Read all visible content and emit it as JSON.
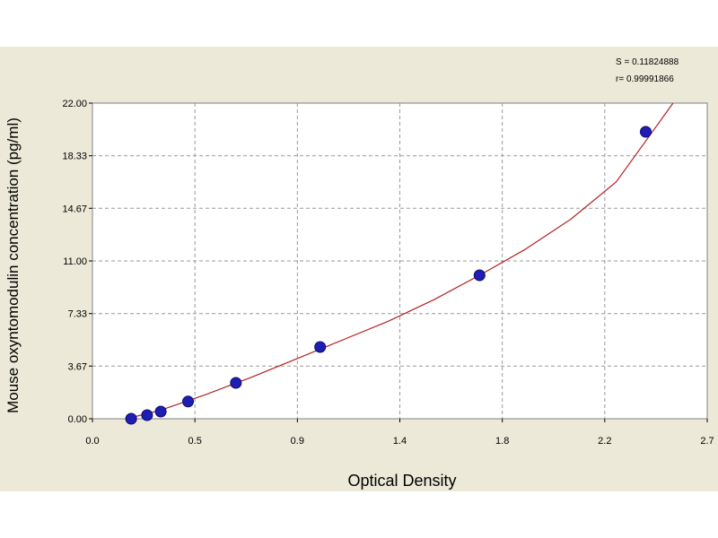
{
  "chart_data": {
    "type": "scatter",
    "xlabel": "Optical Density",
    "ylabel": "Mouse oxyntomodulin concentration (pg/ml)",
    "x_ticks": [
      "0.0",
      "0.5",
      "0.9",
      "1.4",
      "1.8",
      "2.2",
      "2.7"
    ],
    "x_tick_values": [
      0.0,
      0.45,
      0.9,
      1.35,
      1.8,
      2.25,
      2.7
    ],
    "y_ticks": [
      "0.00",
      "3.67",
      "7.33",
      "11.00",
      "14.67",
      "18.33",
      "22.00"
    ],
    "y_tick_values": [
      0.0,
      3.67,
      7.33,
      11.0,
      14.67,
      18.33,
      22.0
    ],
    "xlim": [
      0.0,
      2.7
    ],
    "ylim": [
      0.0,
      22.0
    ],
    "grid": true,
    "annotations": [
      "S = 0.11824888",
      "r= 0.99991866"
    ],
    "points": [
      {
        "x": 0.17,
        "y": 0.0
      },
      {
        "x": 0.24,
        "y": 0.25
      },
      {
        "x": 0.3,
        "y": 0.5
      },
      {
        "x": 0.42,
        "y": 1.2
      },
      {
        "x": 0.63,
        "y": 2.5
      },
      {
        "x": 1.0,
        "y": 5.0
      },
      {
        "x": 1.7,
        "y": 10.0
      },
      {
        "x": 2.43,
        "y": 20.0
      }
    ],
    "fit_curve": [
      {
        "x": 0.15,
        "y": -0.1
      },
      {
        "x": 0.3,
        "y": 0.6
      },
      {
        "x": 0.5,
        "y": 1.7
      },
      {
        "x": 0.7,
        "y": 2.9
      },
      {
        "x": 0.9,
        "y": 4.2
      },
      {
        "x": 1.1,
        "y": 5.5
      },
      {
        "x": 1.3,
        "y": 6.8
      },
      {
        "x": 1.5,
        "y": 8.3
      },
      {
        "x": 1.7,
        "y": 10.0
      },
      {
        "x": 1.9,
        "y": 11.8
      },
      {
        "x": 2.1,
        "y": 13.9
      },
      {
        "x": 2.3,
        "y": 16.5
      },
      {
        "x": 2.45,
        "y": 19.8
      },
      {
        "x": 2.55,
        "y": 22.0
      }
    ],
    "colors": {
      "background": "#ece9d8",
      "plot_area": "#ffffff",
      "grid": "#999999",
      "curve": "#b22222",
      "points": "#1e1eb4"
    }
  }
}
